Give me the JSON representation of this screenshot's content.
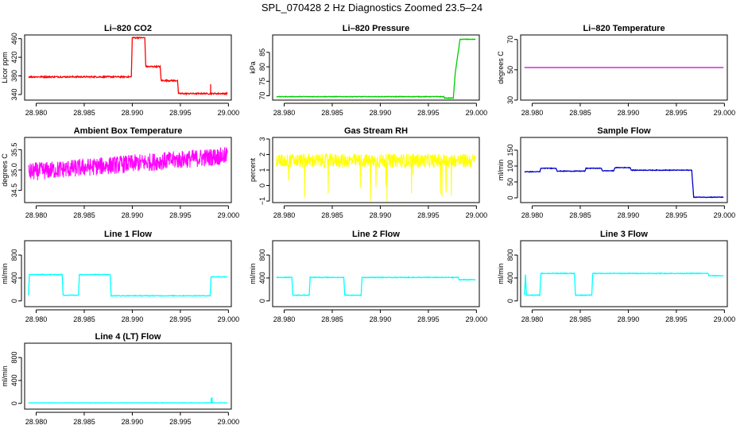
{
  "figure": {
    "title": "SPL_070428  2 Hz Diagnostics Zoomed 23.5–24"
  },
  "chart_data": [
    {
      "type": "line",
      "title": "Li–820 CO2",
      "ylabel": "Licor ppm",
      "color": "#ff0000",
      "xlim": [
        28.9788,
        29.0003
      ],
      "ylim": [
        328,
        468
      ],
      "xticks": [
        28.98,
        28.985,
        28.99,
        28.995,
        29.0
      ],
      "xtick_labels": [
        "28.980",
        "28.985",
        "28.990",
        "28.995",
        "29.000"
      ],
      "yticks": [
        340,
        380,
        420,
        460
      ],
      "ytick_labels": [
        "340",
        "380",
        "420",
        "460"
      ],
      "noise": 1.5,
      "x": [
        28.9792,
        28.9899,
        28.99,
        28.9913,
        28.9914,
        28.9929,
        28.993,
        28.9947,
        28.9948,
        28.9999
      ],
      "y": [
        378,
        378,
        462,
        462,
        400,
        400,
        370,
        370,
        342,
        342
      ]
    },
    {
      "type": "line",
      "title": "Li–820 Pressure",
      "ylabel": "kPa",
      "color": "#00cc00",
      "xlim": [
        28.9788,
        29.0003
      ],
      "ylim": [
        68.5,
        91
      ],
      "xticks": [
        28.98,
        28.985,
        28.99,
        28.995,
        29.0
      ],
      "xtick_labels": [
        "28.980",
        "28.985",
        "28.990",
        "28.995",
        "29.000"
      ],
      "yticks": [
        70,
        75,
        80,
        85
      ],
      "ytick_labels": [
        "70",
        "75",
        "80",
        "85"
      ],
      "noise": 0.1,
      "x": [
        28.9792,
        28.9966,
        28.9967,
        28.9976,
        28.9978,
        28.9981,
        28.9983,
        28.9999
      ],
      "y": [
        69.7,
        69.7,
        69.2,
        69.2,
        78,
        85,
        89.5,
        89.5
      ]
    },
    {
      "type": "line",
      "title": "Li–820 Temperature",
      "ylabel": "degrees C",
      "color": "#cc00cc",
      "xlim": [
        28.9788,
        29.0003
      ],
      "ylim": [
        30,
        73
      ],
      "xticks": [
        28.98,
        28.985,
        28.99,
        28.995,
        29.0
      ],
      "xtick_labels": [
        "28.980",
        "28.985",
        "28.990",
        "28.995",
        "29.000"
      ],
      "yticks": [
        30,
        50,
        70
      ],
      "ytick_labels": [
        "30",
        "50",
        "70"
      ],
      "noise": 0,
      "x": [
        28.9792,
        28.9999
      ],
      "y": [
        51.5,
        51.5
      ]
    },
    {
      "type": "line",
      "title": "Ambient Box Temperature",
      "ylabel": "degrees C",
      "color": "#ff00ff",
      "xlim": [
        28.9788,
        29.0003
      ],
      "ylim": [
        34.2,
        35.8
      ],
      "xticks": [
        28.98,
        28.985,
        28.99,
        28.995,
        29.0
      ],
      "xtick_labels": [
        "28.980",
        "28.985",
        "28.990",
        "28.995",
        "29.000"
      ],
      "yticks": [
        34.5,
        35.0,
        35.5
      ],
      "ytick_labels": [
        "34.5",
        "35.0",
        "35.5"
      ],
      "noise": 0.22,
      "x": [
        28.9792,
        28.9999
      ],
      "y": [
        34.95,
        35.35
      ]
    },
    {
      "type": "line",
      "title": "Gas Stream RH",
      "ylabel": "percent",
      "color": "#ffff00",
      "xlim": [
        28.9788,
        29.0003
      ],
      "ylim": [
        -1.1,
        3.1
      ],
      "xticks": [
        28.98,
        28.985,
        28.99,
        28.995,
        29.0
      ],
      "xtick_labels": [
        "28.980",
        "28.985",
        "28.990",
        "28.995",
        "29.000"
      ],
      "yticks": [
        -1,
        0,
        1,
        2,
        3
      ],
      "ytick_labels": [
        "−1",
        "0",
        "1",
        "2",
        "3"
      ],
      "noise": 0.45,
      "x": [
        28.9792,
        28.9999
      ],
      "y": [
        1.6,
        1.6
      ]
    },
    {
      "type": "line",
      "title": "Sample Flow",
      "ylabel": "ml/min",
      "color": "#0000cc",
      "xlim": [
        28.9788,
        29.0003
      ],
      "ylim": [
        -15,
        190
      ],
      "xticks": [
        28.98,
        28.985,
        28.99,
        28.995,
        29.0
      ],
      "xtick_labels": [
        "28.980",
        "28.985",
        "28.990",
        "28.995",
        "29.000"
      ],
      "yticks": [
        0,
        50,
        100,
        150
      ],
      "ytick_labels": [
        "0",
        "50",
        "100",
        "150"
      ],
      "noise": 1,
      "x": [
        28.9792,
        28.9808,
        28.9809,
        28.9825,
        28.9826,
        28.9855,
        28.9856,
        28.9872,
        28.9873,
        28.9885,
        28.9886,
        28.9902,
        28.9903,
        28.9966,
        28.9968,
        28.9999
      ],
      "y": [
        82,
        82,
        93,
        93,
        84,
        84,
        93,
        93,
        85,
        85,
        95,
        95,
        87,
        87,
        2,
        2
      ]
    },
    {
      "type": "line",
      "title": "Line 1 Flow",
      "ylabel": "ml/min",
      "color": "#00ffff",
      "xlim": [
        28.9788,
        29.0003
      ],
      "ylim": [
        -100,
        1050
      ],
      "xticks": [
        28.98,
        28.985,
        28.99,
        28.995,
        29.0
      ],
      "xtick_labels": [
        "28.980",
        "28.985",
        "28.990",
        "28.995",
        "29.000"
      ],
      "yticks": [
        0,
        400,
        800
      ],
      "ytick_labels": [
        "0",
        "400",
        "800"
      ],
      "noise": 6,
      "x": [
        28.9792,
        28.9793,
        28.9827,
        28.9828,
        28.9844,
        28.9845,
        28.9877,
        28.9878,
        28.9981,
        28.9982,
        28.9999
      ],
      "y": [
        100,
        460,
        460,
        100,
        100,
        460,
        460,
        90,
        90,
        420,
        420
      ]
    },
    {
      "type": "line",
      "title": "Line 2 Flow",
      "ylabel": "ml/min",
      "color": "#00ffff",
      "xlim": [
        28.9788,
        29.0003
      ],
      "ylim": [
        -100,
        1050
      ],
      "xticks": [
        28.98,
        28.985,
        28.99,
        28.995,
        29.0
      ],
      "xtick_labels": [
        "28.980",
        "28.985",
        "28.990",
        "28.995",
        "29.000"
      ],
      "yticks": [
        0,
        400,
        800
      ],
      "ytick_labels": [
        "0",
        "400",
        "800"
      ],
      "noise": 6,
      "x": [
        28.9792,
        28.9808,
        28.9809,
        28.9826,
        28.9827,
        28.9862,
        28.9863,
        28.988,
        28.9881,
        28.9981,
        28.9982,
        28.9999
      ],
      "y": [
        410,
        410,
        100,
        100,
        410,
        410,
        100,
        100,
        410,
        410,
        370,
        370
      ]
    },
    {
      "type": "line",
      "title": "Line 3 Flow",
      "ylabel": "ml/min",
      "color": "#00ffff",
      "xlim": [
        28.9788,
        29.0003
      ],
      "ylim": [
        -100,
        1050
      ],
      "xticks": [
        28.98,
        28.985,
        28.99,
        28.995,
        29.0
      ],
      "xtick_labels": [
        "28.980",
        "28.985",
        "28.990",
        "28.995",
        "29.000"
      ],
      "yticks": [
        0,
        400,
        800
      ],
      "ytick_labels": [
        "0",
        "400",
        "800"
      ],
      "noise": 6,
      "x": [
        28.9792,
        28.9793,
        28.9794,
        28.9808,
        28.9809,
        28.9844,
        28.9845,
        28.9862,
        28.9863,
        28.9983,
        28.9984,
        28.9999
      ],
      "y": [
        100,
        460,
        100,
        100,
        480,
        480,
        100,
        100,
        480,
        480,
        440,
        440
      ]
    },
    {
      "type": "line",
      "title": "Line 4 (LT) Flow",
      "ylabel": "ml/min",
      "color": "#00ffff",
      "xlim": [
        28.9788,
        29.0003
      ],
      "ylim": [
        -100,
        1050
      ],
      "xticks": [
        28.98,
        28.985,
        28.99,
        28.995,
        29.0
      ],
      "xtick_labels": [
        "28.980",
        "28.985",
        "28.990",
        "28.995",
        "29.000"
      ],
      "yticks": [
        0,
        400,
        800
      ],
      "ytick_labels": [
        "0",
        "400",
        "800"
      ],
      "noise": 3,
      "x": [
        28.9792,
        28.9982,
        28.99821,
        28.9983,
        28.99831,
        28.9999
      ],
      "y": [
        10,
        10,
        90,
        90,
        10,
        10
      ]
    }
  ]
}
